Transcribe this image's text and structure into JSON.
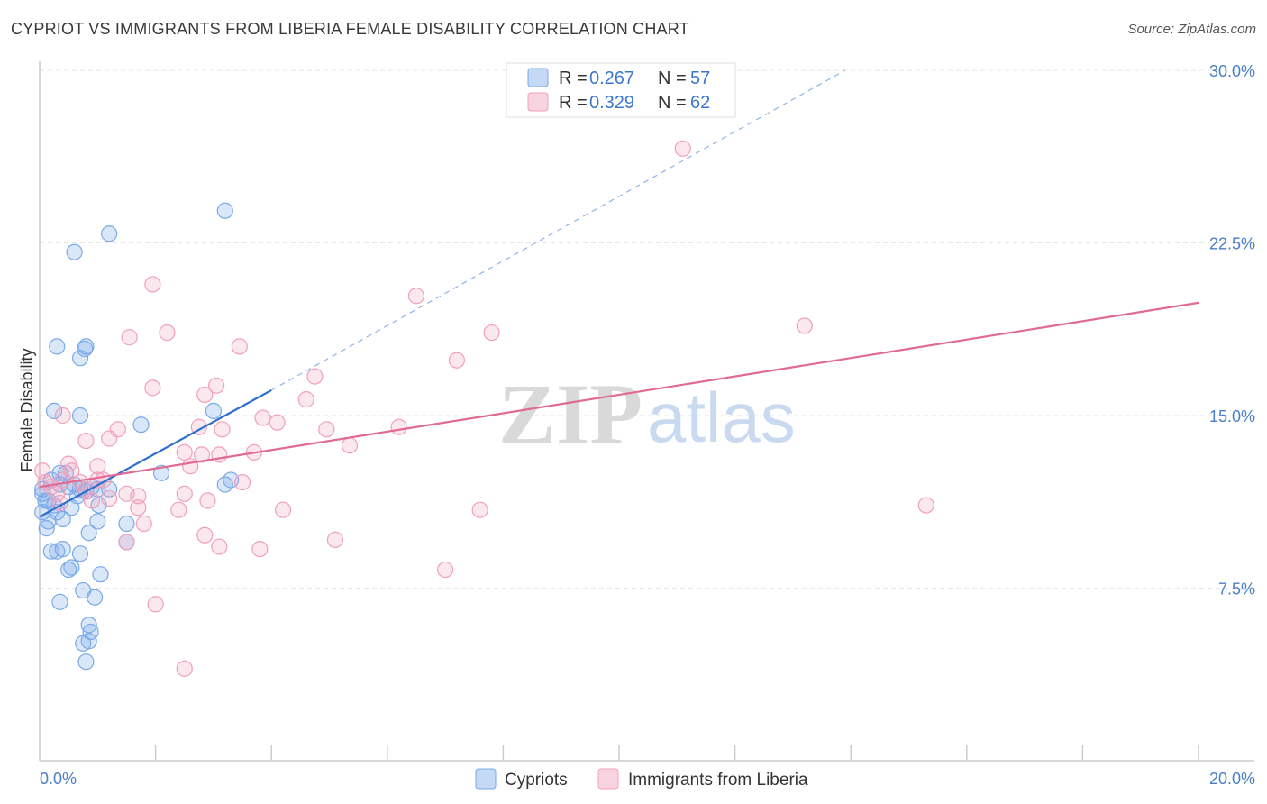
{
  "header": {
    "title": "CYPRIOT VS IMMIGRANTS FROM LIBERIA FEMALE DISABILITY CORRELATION CHART",
    "source": "Source: ZipAtlas.com"
  },
  "watermark": {
    "zip": "ZIP",
    "atlas": "atlas"
  },
  "legend_box": [
    {
      "r_label": "R =",
      "r_value": "0.267",
      "n_label": "N =",
      "n_value": "57"
    },
    {
      "r_label": "R =",
      "r_value": "0.329",
      "n_label": "N =",
      "n_value": "62"
    }
  ],
  "chart_data": {
    "type": "scatter",
    "title": "CYPRIOT VS IMMIGRANTS FROM LIBERIA FEMALE DISABILITY CORRELATION CHART",
    "xlabel": "",
    "ylabel": "Female Disability",
    "xlim": [
      0,
      20
    ],
    "ylim": [
      0,
      31.5
    ],
    "x_tick_labels": [
      {
        "value": 0,
        "label": "0.0%"
      },
      {
        "value": 20,
        "label": "20.0%"
      }
    ],
    "y_tick_labels": [
      {
        "value": 7.5,
        "label": "7.5%"
      },
      {
        "value": 15,
        "label": "15.0%"
      },
      {
        "value": 22.5,
        "label": "22.5%"
      },
      {
        "value": 30,
        "label": "30.0%"
      }
    ],
    "x_minor_ticks": [
      2,
      4,
      6,
      8,
      10,
      12,
      14,
      16,
      18
    ],
    "grid": true,
    "colors": {
      "cypriots": "#7aaae8",
      "cypriots_fill": "rgba(122,170,232,0.28)",
      "cypriots_line": "#2f6fcc",
      "liberia": "#f0a0bb",
      "liberia_fill": "rgba(240,160,187,0.25)",
      "liberia_line": "#e06a94",
      "grid": "#e6e6e6",
      "axis_text": "#4a7fc7"
    },
    "series": [
      {
        "name": "Cypriots",
        "r": 0.267,
        "n": 57,
        "trend_solid": {
          "x": [
            0,
            4.0
          ],
          "y": [
            10.6,
            16.1
          ]
        },
        "trend_dashed": {
          "x": [
            4.0,
            13.9
          ],
          "y": [
            16.1,
            30.0
          ]
        },
        "points": [
          [
            0.05,
            10.8
          ],
          [
            0.1,
            11.3
          ],
          [
            0.15,
            10.4
          ],
          [
            0.05,
            11.8
          ],
          [
            0.2,
            12.2
          ],
          [
            0.12,
            10.1
          ],
          [
            0.3,
            10.8
          ],
          [
            0.25,
            11.1
          ],
          [
            0.35,
            12.0
          ],
          [
            0.4,
            10.5
          ],
          [
            0.2,
            9.1
          ],
          [
            0.3,
            9.1
          ],
          [
            0.4,
            9.2
          ],
          [
            0.5,
            8.3
          ],
          [
            0.55,
            8.4
          ],
          [
            0.6,
            12.0
          ],
          [
            0.35,
            12.5
          ],
          [
            0.45,
            12.5
          ],
          [
            0.5,
            11.9
          ],
          [
            0.65,
            11.5
          ],
          [
            0.7,
            11.8
          ],
          [
            0.55,
            11.0
          ],
          [
            0.8,
            11.7
          ],
          [
            0.7,
            9.0
          ],
          [
            0.9,
            11.9
          ],
          [
            0.85,
            9.9
          ],
          [
            1.0,
            11.8
          ],
          [
            1.0,
            10.4
          ],
          [
            1.02,
            11.1
          ],
          [
            1.05,
            8.1
          ],
          [
            0.75,
            7.4
          ],
          [
            0.95,
            7.1
          ],
          [
            0.35,
            6.9
          ],
          [
            0.85,
            5.9
          ],
          [
            0.88,
            5.6
          ],
          [
            0.75,
            5.1
          ],
          [
            0.85,
            5.2
          ],
          [
            0.8,
            4.3
          ],
          [
            0.3,
            18.0
          ],
          [
            0.8,
            18.0
          ],
          [
            0.7,
            17.5
          ],
          [
            0.78,
            17.9
          ],
          [
            0.25,
            15.2
          ],
          [
            0.7,
            15.0
          ],
          [
            0.6,
            22.1
          ],
          [
            1.2,
            22.9
          ],
          [
            3.2,
            23.9
          ],
          [
            1.75,
            14.6
          ],
          [
            2.1,
            12.5
          ],
          [
            1.5,
            10.3
          ],
          [
            1.5,
            9.5
          ],
          [
            3.0,
            15.2
          ],
          [
            3.2,
            12.0
          ],
          [
            3.3,
            12.2
          ],
          [
            1.2,
            11.8
          ],
          [
            0.05,
            11.6
          ],
          [
            0.15,
            11.3
          ]
        ]
      },
      {
        "name": "Immigrants from Liberia",
        "r": 0.329,
        "n": 62,
        "trend_solid": {
          "x": [
            0,
            20.0
          ],
          "y": [
            11.9,
            19.9
          ]
        },
        "points": [
          [
            0.05,
            12.6
          ],
          [
            0.1,
            12.1
          ],
          [
            0.2,
            11.9
          ],
          [
            0.3,
            11.6
          ],
          [
            0.4,
            12.2
          ],
          [
            0.35,
            11.2
          ],
          [
            0.5,
            12.9
          ],
          [
            0.55,
            12.6
          ],
          [
            0.7,
            12.1
          ],
          [
            0.8,
            11.8
          ],
          [
            0.9,
            11.3
          ],
          [
            1.0,
            12.8
          ],
          [
            1.1,
            12.2
          ],
          [
            1.2,
            11.4
          ],
          [
            0.4,
            15.0
          ],
          [
            0.8,
            13.9
          ],
          [
            1.0,
            12.2
          ],
          [
            1.2,
            14.0
          ],
          [
            1.35,
            14.4
          ],
          [
            1.5,
            11.6
          ],
          [
            1.7,
            11.5
          ],
          [
            1.7,
            11.0
          ],
          [
            1.8,
            10.3
          ],
          [
            1.5,
            9.5
          ],
          [
            1.95,
            16.2
          ],
          [
            1.55,
            18.4
          ],
          [
            1.95,
            20.7
          ],
          [
            2.2,
            18.6
          ],
          [
            2.4,
            10.9
          ],
          [
            2.5,
            11.6
          ],
          [
            2.5,
            13.4
          ],
          [
            2.6,
            12.8
          ],
          [
            2.75,
            14.5
          ],
          [
            2.8,
            13.3
          ],
          [
            2.85,
            15.9
          ],
          [
            2.85,
            9.8
          ],
          [
            2.9,
            11.3
          ],
          [
            3.05,
            16.3
          ],
          [
            3.1,
            13.3
          ],
          [
            3.1,
            9.3
          ],
          [
            3.15,
            14.4
          ],
          [
            3.45,
            18.0
          ],
          [
            3.5,
            12.1
          ],
          [
            3.7,
            13.4
          ],
          [
            3.8,
            9.2
          ],
          [
            3.85,
            14.9
          ],
          [
            4.1,
            14.7
          ],
          [
            4.2,
            10.9
          ],
          [
            4.6,
            15.7
          ],
          [
            4.75,
            16.7
          ],
          [
            4.95,
            14.4
          ],
          [
            5.1,
            9.6
          ],
          [
            5.35,
            13.7
          ],
          [
            6.2,
            14.5
          ],
          [
            6.5,
            20.2
          ],
          [
            7.0,
            8.3
          ],
          [
            7.2,
            17.4
          ],
          [
            7.6,
            10.9
          ],
          [
            7.8,
            18.6
          ],
          [
            11.1,
            26.6
          ],
          [
            13.2,
            18.9
          ],
          [
            15.3,
            11.1
          ]
        ],
        "extra_points": [
          [
            2.0,
            6.8
          ],
          [
            2.5,
            4.0
          ]
        ]
      }
    ]
  },
  "bottom_legend": [
    {
      "label": "Cypriots"
    },
    {
      "label": "Immigrants from Liberia"
    }
  ]
}
